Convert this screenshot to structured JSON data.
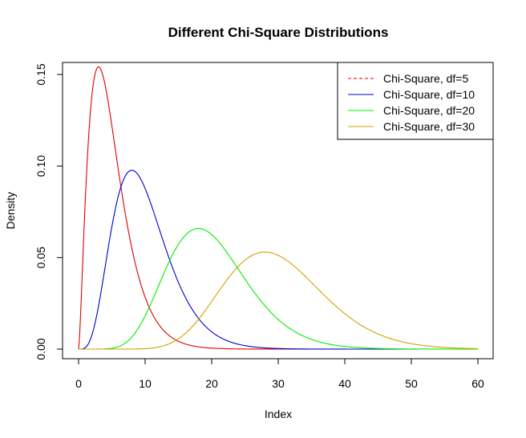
{
  "chart_data": {
    "type": "line",
    "title": "Different Chi-Square Distributions",
    "xlabel": "Index",
    "ylabel": "Density",
    "xlim": [
      0,
      60
    ],
    "ylim": [
      0,
      0.155
    ],
    "x_ticks": [
      0,
      10,
      20,
      30,
      40,
      50,
      60
    ],
    "x_tick_labels": [
      "0",
      "10",
      "20",
      "30",
      "40",
      "50",
      "60"
    ],
    "y_ticks": [
      0.0,
      0.05,
      0.1,
      0.15
    ],
    "y_tick_labels": [
      "0.00",
      "0.05",
      "0.10",
      "0.15"
    ],
    "grid": false,
    "legend_position": "top-right",
    "series": [
      {
        "name": "Chi-Square, df=5",
        "df": 5,
        "color": "#dd0000",
        "legend_dash": true,
        "x": [
          0,
          1,
          2,
          3,
          4,
          5,
          6,
          8,
          10,
          12,
          15,
          20,
          25,
          30,
          60
        ],
        "y": [
          0,
          0.0807,
          0.138,
          0.1542,
          0.1465,
          0.122,
          0.0996,
          0.0551,
          0.0283,
          0.0138,
          0.0044,
          0.0005,
          0.0,
          0.0,
          0
        ]
      },
      {
        "name": "Chi-Square, df=10",
        "df": 10,
        "color": "#0000cc",
        "legend_dash": false,
        "x": [
          0,
          2,
          4,
          6,
          8,
          10,
          12,
          14,
          16,
          20,
          25,
          30,
          40,
          60
        ],
        "y": [
          0,
          0.0077,
          0.0451,
          0.084,
          0.0977,
          0.0877,
          0.0669,
          0.0454,
          0.0282,
          0.0087,
          0.0014,
          0.0002,
          0.0,
          0
        ]
      },
      {
        "name": "Chi-Square, df=20",
        "df": 20,
        "color": "#00ee00",
        "legend_dash": false,
        "x": [
          0,
          5,
          10,
          12,
          14,
          16,
          18,
          20,
          22,
          25,
          30,
          35,
          40,
          50,
          60
        ],
        "y": [
          0,
          0.0002,
          0.0094,
          0.0224,
          0.0399,
          0.0566,
          0.0658,
          0.0626,
          0.057,
          0.0446,
          0.0201,
          0.0068,
          0.0018,
          0.0001,
          0
        ]
      },
      {
        "name": "Chi-Square, df=30",
        "df": 30,
        "color": "#d4a000",
        "legend_dash": false,
        "x": [
          0,
          10,
          15,
          20,
          25,
          28,
          30,
          35,
          40,
          45,
          50,
          55,
          60
        ],
        "y": [
          0,
          0.0001,
          0.002,
          0.0153,
          0.043,
          0.0529,
          0.0511,
          0.038,
          0.0198,
          0.008,
          0.0026,
          0.0007,
          0.0002
        ]
      }
    ]
  }
}
